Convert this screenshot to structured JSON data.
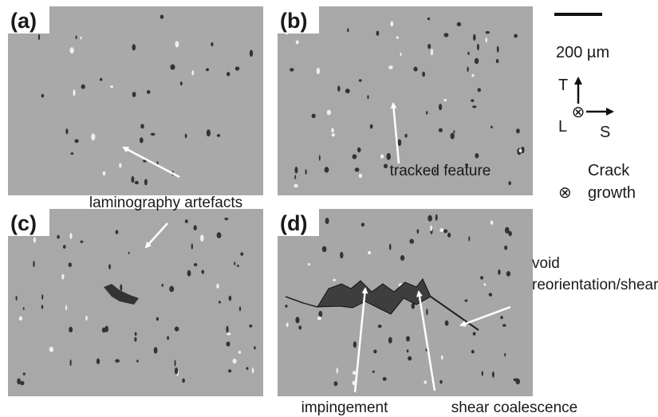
{
  "panels": [
    {
      "label": "(a)"
    },
    {
      "label": "(b)"
    },
    {
      "label": "(c)"
    },
    {
      "label": "(d)"
    }
  ],
  "scale_bar": {
    "label": "200 µm"
  },
  "axes": {
    "t": "T",
    "l": "L",
    "s": "S",
    "out_symbol": "⊗"
  },
  "legend": {
    "symbol": "⊗",
    "line1": "Crack",
    "line2": "growth"
  },
  "annotations": {
    "laminography": "laminography artefacts",
    "tracked": "tracked feature",
    "void1": "void",
    "void2": "reorientation/shear",
    "impingement": "impingement",
    "shear": "shear coalescence"
  }
}
